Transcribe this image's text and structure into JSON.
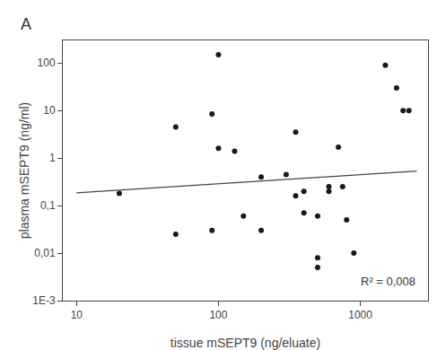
{
  "chart_data": {
    "type": "scatter",
    "log": true,
    "grid": false,
    "xlabel": "tissue mSEPT9 (ng/eluate)",
    "ylabel": "plasma mSEPT9 (ng/ml)",
    "annotations": [
      "R² = 0,008",
      "A"
    ],
    "xlim": [
      8,
      3000
    ],
    "ylim": [
      0.001,
      300
    ],
    "xticks": [
      10,
      100,
      1000
    ],
    "yticks": [
      {
        "value": 0.001,
        "label": "1E-3"
      },
      {
        "value": 0.01,
        "label": "0,01"
      },
      {
        "value": 0.1,
        "label": "0,1"
      },
      1,
      10,
      100
    ],
    "series": [
      {
        "type": "scatter",
        "marker": "circle",
        "color": "#1a1a1a",
        "x": [
          20,
          50,
          50,
          90,
          90,
          100,
          100,
          130,
          150,
          200,
          200,
          300,
          350,
          350,
          400,
          400,
          500,
          500,
          500,
          600,
          600,
          700,
          750,
          800,
          900,
          1500,
          1800,
          2000,
          2200
        ],
        "values": [
          0.18,
          0.025,
          4.5,
          0.03,
          8.5,
          150,
          1.6,
          1.4,
          0.06,
          0.03,
          0.4,
          0.45,
          0.16,
          3.5,
          0.07,
          0.2,
          0.008,
          0.06,
          0.005,
          0.2,
          0.25,
          1.7,
          0.25,
          0.05,
          0.01,
          90,
          30,
          10,
          10
        ]
      },
      {
        "type": "line",
        "line_style": "solid",
        "color": "#444444",
        "x": [
          10,
          2500
        ],
        "values": [
          0.186209,
          0.531629
        ]
      }
    ]
  }
}
